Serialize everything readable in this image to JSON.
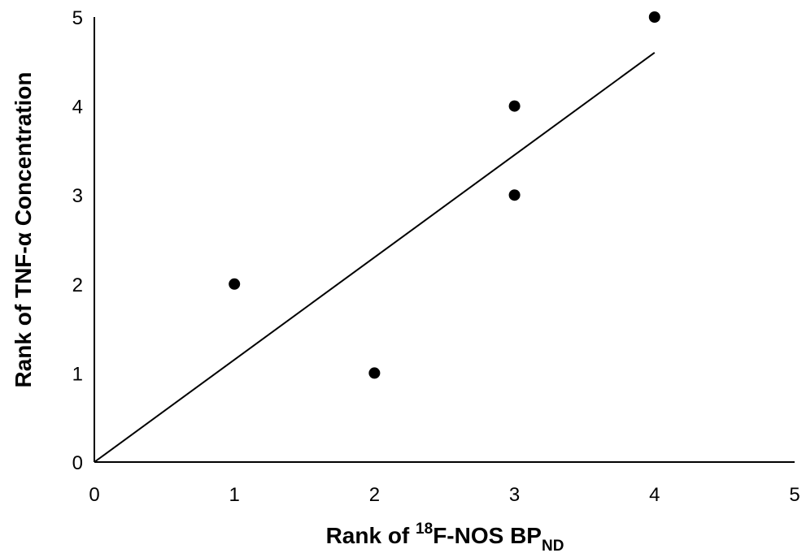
{
  "chart_data": {
    "type": "scatter",
    "title": "",
    "xlabel": {
      "prefix": "Rank of ",
      "superscript": "18",
      "main": "F-NOS BP",
      "subscript": "ND"
    },
    "ylabel": "Rank of TNF-α Concentration",
    "xlim": [
      0,
      5
    ],
    "ylim": [
      0,
      5
    ],
    "xticks": [
      "0",
      "1",
      "2",
      "3",
      "4",
      "5"
    ],
    "yticks": [
      "0",
      "1",
      "2",
      "3",
      "4",
      "5"
    ],
    "grid": false,
    "legend": "none",
    "series": [
      {
        "points": [
          {
            "x": 1,
            "y": 2
          },
          {
            "x": 2,
            "y": 1
          },
          {
            "x": 3,
            "y": 4
          },
          {
            "x": 3,
            "y": 3
          },
          {
            "x": 4,
            "y": 5
          }
        ],
        "color": "#000000"
      }
    ],
    "trendline": {
      "type": "linear",
      "from": {
        "x": 0,
        "y": 0
      },
      "to": {
        "x": 4,
        "y": 4.6
      },
      "color": "#000000"
    }
  }
}
